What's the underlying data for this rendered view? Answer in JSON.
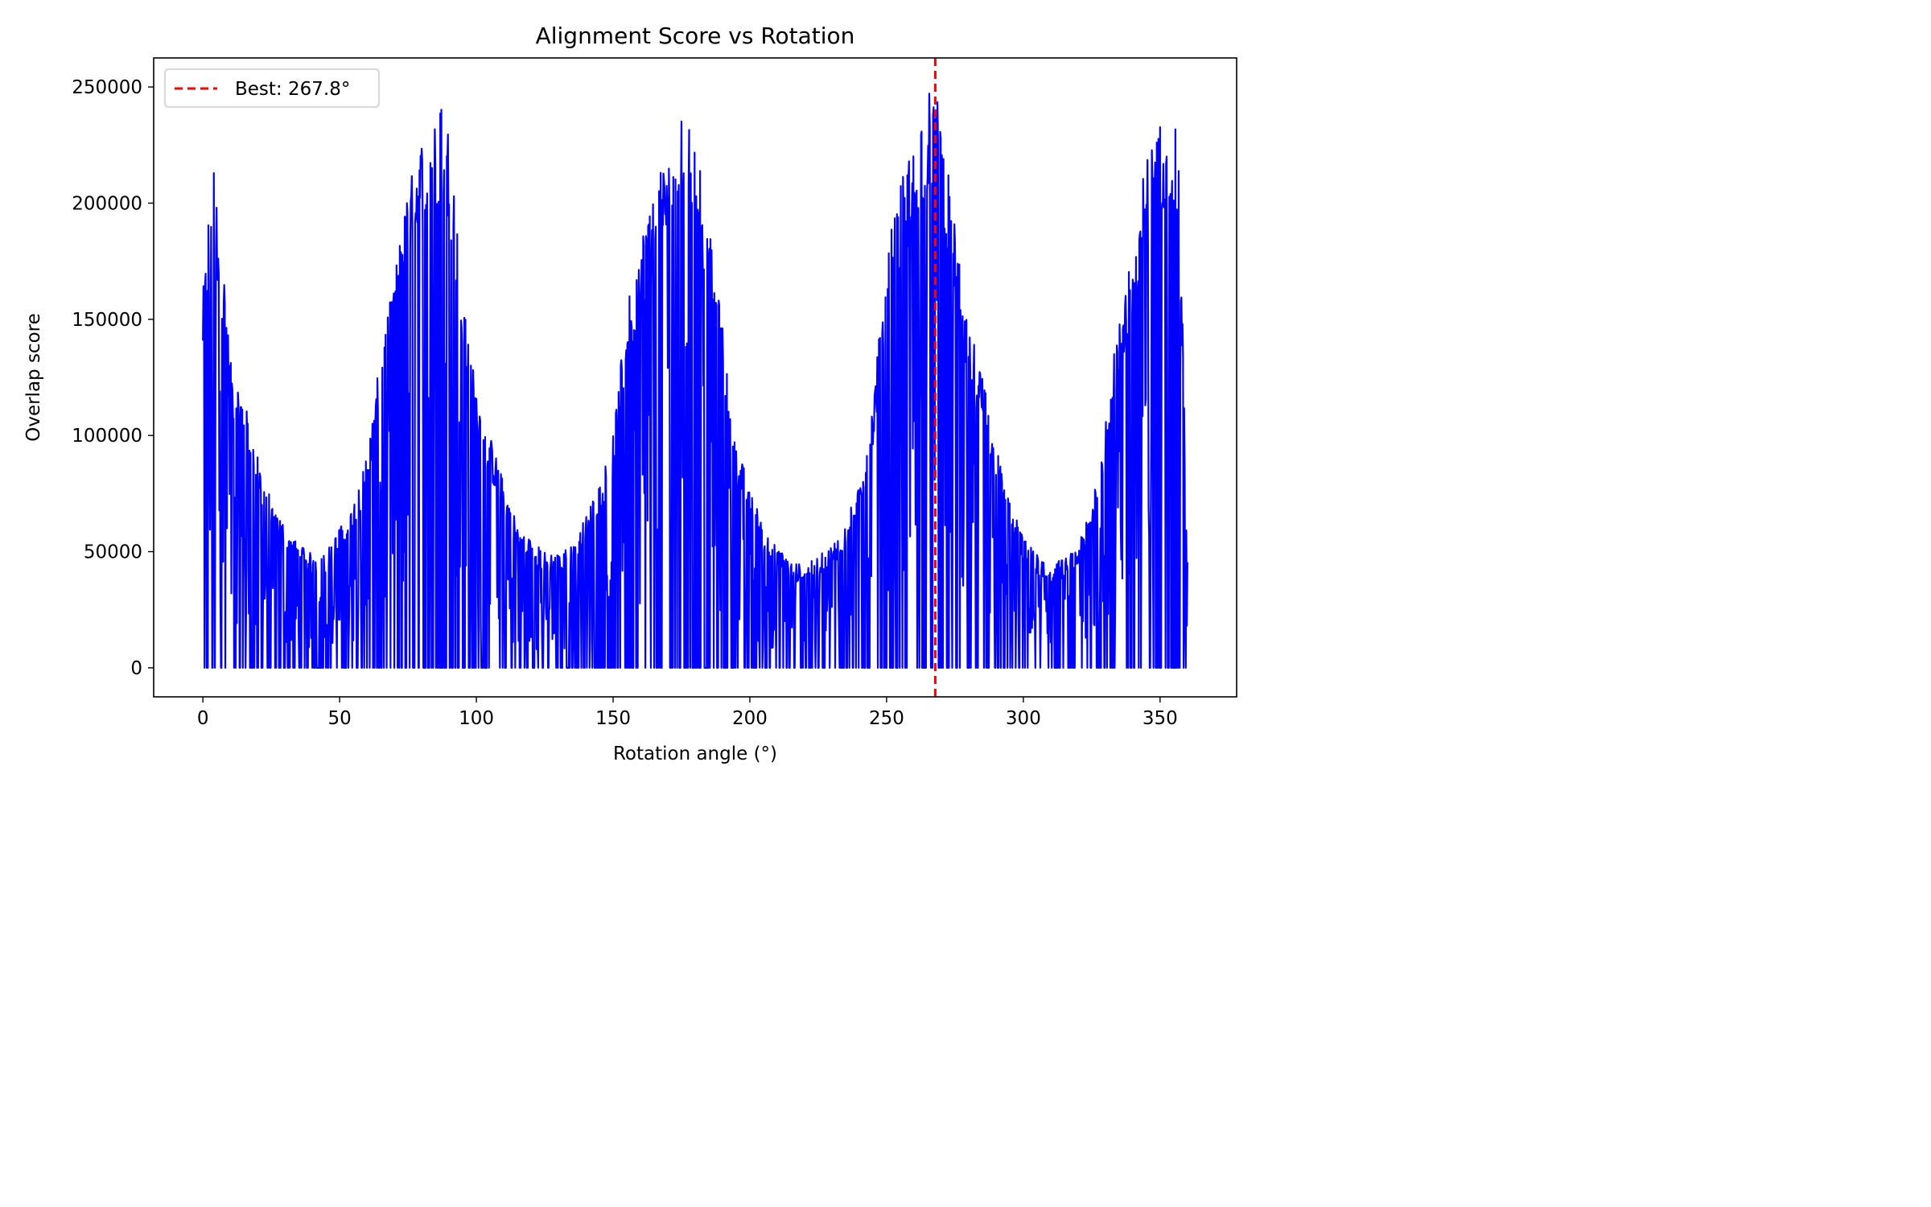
{
  "chart_data": {
    "type": "line",
    "title": "Alignment Score vs Rotation",
    "xlabel": "Rotation angle (°)",
    "ylabel": "Overlap score",
    "xlim": [
      -18,
      378
    ],
    "ylim": [
      -12500,
      262500
    ],
    "xticks": [
      0,
      50,
      100,
      150,
      200,
      250,
      300,
      350
    ],
    "yticks": [
      0,
      50000,
      100000,
      150000,
      200000,
      250000
    ],
    "grid": false,
    "legend": {
      "placement": "top-left",
      "entries": [
        "Best: 267.8°"
      ]
    },
    "series": [
      {
        "color": "#0000ff",
        "description_points": "envelope of noisy overlap scores from 0 to 360 deg, sampled at key maxima",
        "x": [
          0,
          3,
          4,
          7,
          10,
          15,
          20,
          25,
          30,
          35,
          40,
          45,
          50,
          55,
          60,
          65,
          70,
          75,
          78,
          80,
          83,
          85,
          87,
          88,
          90,
          95,
          100,
          105,
          110,
          115,
          120,
          125,
          130,
          135,
          140,
          145,
          150,
          155,
          160,
          165,
          168,
          170,
          173,
          175,
          177,
          179,
          181,
          185,
          190,
          195,
          200,
          205,
          210,
          215,
          220,
          225,
          230,
          235,
          240,
          245,
          250,
          255,
          260,
          263,
          265,
          267.8,
          270,
          272,
          275,
          280,
          285,
          290,
          295,
          300,
          305,
          310,
          315,
          320,
          325,
          330,
          335,
          340,
          345,
          350,
          352,
          355,
          357,
          360
        ],
        "values": [
          161000,
          212000,
          214000,
          183000,
          132000,
          116000,
          91000,
          72000,
          62000,
          53000,
          49000,
          50000,
          60000,
          71000,
          92000,
          135000,
          171000,
          205000,
          222000,
          228000,
          230000,
          235000,
          250000,
          224000,
          237000,
          158000,
          120000,
          100000,
          80000,
          62000,
          55000,
          50000,
          49000,
          53000,
          65000,
          80000,
          100000,
          155000,
          185000,
          208000,
          215000,
          222000,
          230000,
          237000,
          237000,
          237000,
          225000,
          190000,
          147000,
          96000,
          79000,
          60000,
          52000,
          46000,
          44000,
          48000,
          53000,
          62000,
          80000,
          115000,
          178000,
          209000,
          230000,
          240000,
          249000,
          250000,
          249000,
          218000,
          190000,
          148000,
          127000,
          96000,
          72000,
          56000,
          49000,
          45000,
          47000,
          52000,
          70000,
          110000,
          150000,
          185000,
          220000,
          236000,
          244000,
          237000,
          220000,
          47000
        ]
      }
    ],
    "reference_line": {
      "x": 267.8,
      "color": "#ff0000",
      "style": "dashed",
      "label": "Best: 267.8°"
    }
  }
}
